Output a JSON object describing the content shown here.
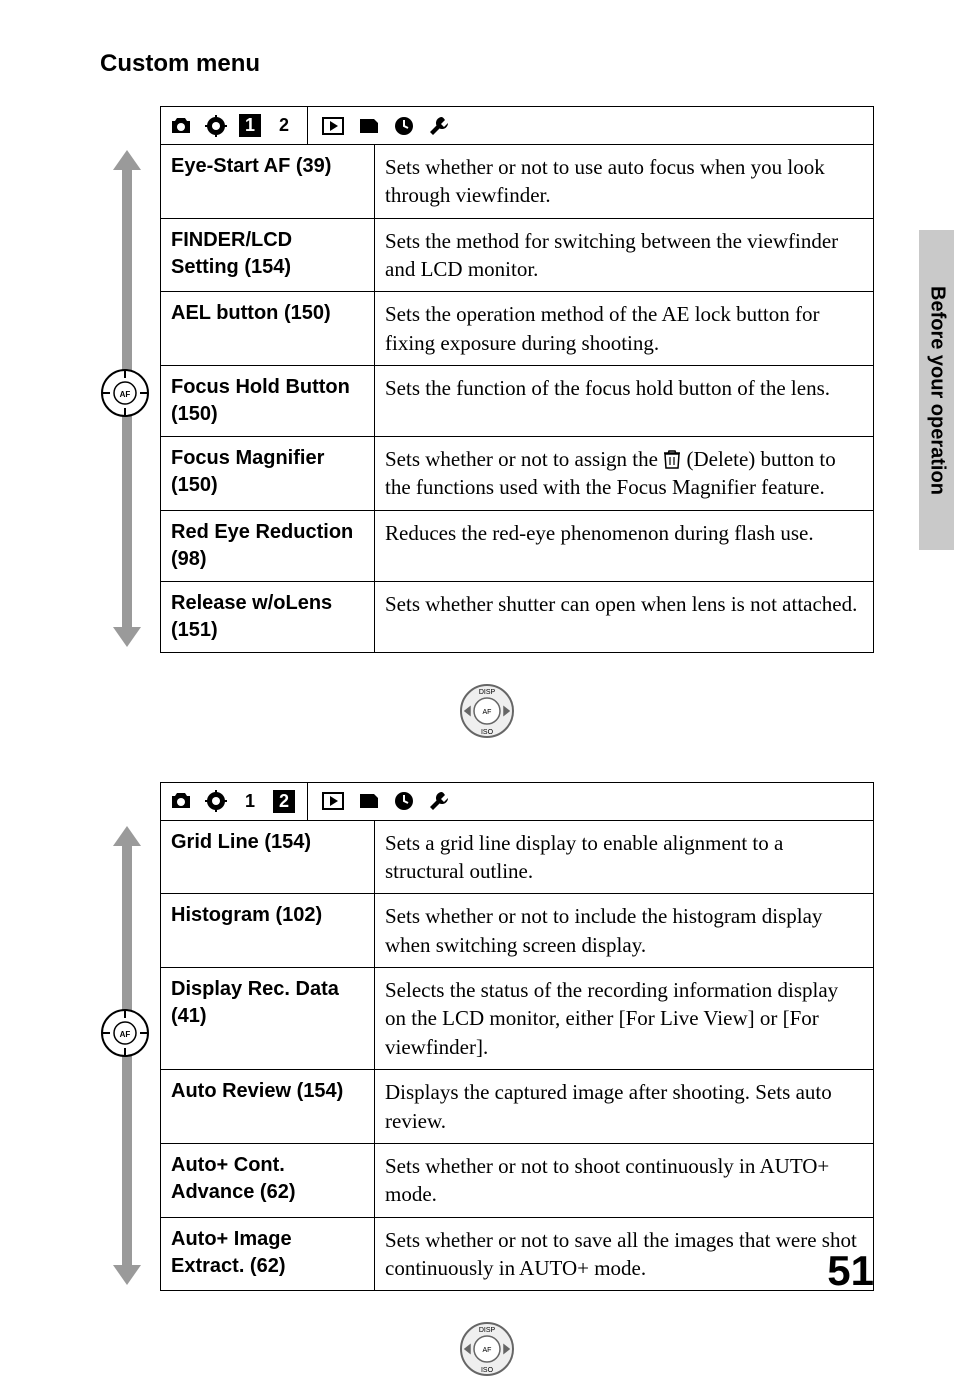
{
  "section_title": "Custom menu",
  "side_tab": "Before your operation",
  "page_number": "51",
  "tabs": {
    "tab1": {
      "nums": [
        "1",
        "2"
      ],
      "active_index": 0
    },
    "tab2": {
      "nums": [
        "1",
        "2"
      ],
      "active_index": 1
    }
  },
  "table1": [
    {
      "label": "Eye-Start AF (39)",
      "desc": "Sets whether or not to use auto focus when you look through viewfinder."
    },
    {
      "label": "FINDER/LCD Setting (154)",
      "desc": "Sets the method for switching between the viewfinder and LCD monitor."
    },
    {
      "label": "AEL button (150)",
      "desc": "Sets the operation method of the AE lock button for fixing exposure during shooting."
    },
    {
      "label": "Focus Hold Button (150)",
      "desc": "Sets the function of the focus hold button of the lens."
    },
    {
      "label": "Focus Magnifier (150)",
      "desc_pre": "Sets whether or not to assign the ",
      "desc_post": " (Delete) button to the functions used with the Focus Magnifier feature.",
      "has_icon": true
    },
    {
      "label": "Red Eye Reduction (98)",
      "desc": "Reduces the red-eye phenomenon during flash use."
    },
    {
      "label": "Release w/oLens (151)",
      "desc": "Sets whether shutter can open when lens is not attached."
    }
  ],
  "table2": [
    {
      "label": "Grid Line (154)",
      "desc": "Sets a grid line display to enable alignment to a structural outline."
    },
    {
      "label": "Histogram (102)",
      "desc": "Sets whether or not to include the histogram display when switching screen display."
    },
    {
      "label": "Display Rec. Data (41)",
      "desc": "Selects the status of the recording information display on the LCD monitor, either [For Live View] or [For viewfinder]."
    },
    {
      "label": "Auto Review (154)",
      "desc": "Displays the captured image after shooting. Sets auto review."
    },
    {
      "label": "Auto+ Cont. Advance (62)",
      "desc": "Sets whether or not to shoot continuously in AUTO+ mode."
    },
    {
      "label": "Auto+ Image Extract. (62)",
      "desc": "Sets whether or not to save all the images that were shot continuously in AUTO+ mode."
    }
  ]
}
